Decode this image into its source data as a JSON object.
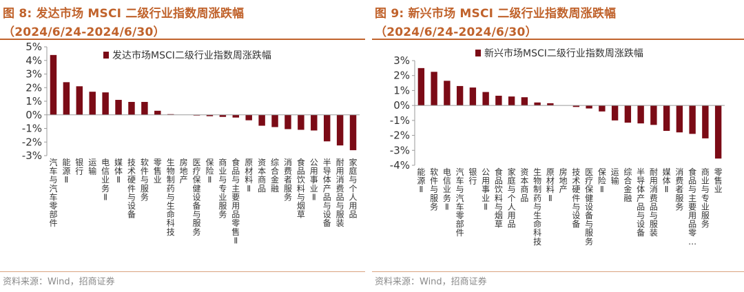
{
  "source_label": "资料来源：Wind，招商证券",
  "colors": {
    "bar": "#7B0B16",
    "title": "#C0622B",
    "axis": "#9a9a9a",
    "text": "#333333"
  },
  "chart_data": [
    {
      "type": "bar",
      "title": "图 8:  发达市场 MSCI 二级行业指数周涨跌幅",
      "subtitle": "（2024/6/24-2024/6/30）",
      "legend": "发达市场MSCI二级行业指数周涨跌幅",
      "legend_position": "top",
      "grid": false,
      "ylim": [
        -3,
        5
      ],
      "yticks": [
        5,
        4,
        3,
        2,
        1,
        0,
        -1,
        -2,
        -3
      ],
      "tick_format": "percent",
      "categories": [
        "汽车与汽车零部件",
        "能源Ⅱ",
        "银行",
        "运输",
        "电信业务Ⅱ",
        "媒体Ⅱ",
        "技术硬件与设备",
        "软件与服务",
        "零售业",
        "生物制药与生命科技",
        "房地产",
        "医疗保健设备与服务",
        "保险Ⅱ",
        "商业与专业服务",
        "食品与主要用品零售Ⅱ",
        "原材料Ⅱ",
        "资本商品",
        "综合金融",
        "消费者服务",
        "食品饮料与烟草",
        "公用事业Ⅱ",
        "半导体产品与设备",
        "耐用消费品与服装",
        "家庭与个人用品"
      ],
      "values": [
        4.4,
        2.4,
        2.1,
        1.7,
        1.65,
        1.1,
        0.95,
        0.95,
        0.3,
        0.05,
        0.0,
        -0.05,
        -0.1,
        -0.15,
        -0.2,
        -0.4,
        -0.8,
        -0.9,
        -1.05,
        -1.1,
        -1.15,
        -1.95,
        -2.25,
        -2.6
      ]
    },
    {
      "type": "bar",
      "title": "图 9:  新兴市场 MSCI 二级行业指数周涨跌幅",
      "subtitle": "（2024/6/24-2024/6/30）",
      "legend": "新兴市场MSCI二级行业指数周涨跌幅",
      "legend_position": "top",
      "grid": false,
      "ylim": [
        -4,
        3
      ],
      "yticks": [
        3,
        2,
        1,
        0,
        -1,
        -2,
        -3,
        -4
      ],
      "tick_format": "percent",
      "categories": [
        "能源Ⅱ",
        "软件与服务",
        "电信业务Ⅱ",
        "汽车与汽车零部件",
        "银行",
        "公用事业Ⅱ",
        "食品饮料与烟草",
        "家庭与个人用品",
        "资本商品",
        "生物制药与生命科技",
        "原材料Ⅱ",
        "房地产",
        "技术硬件与设备",
        "医疗保健设备与服务",
        "保险Ⅱ",
        "运输",
        "综合金融",
        "半导体产品与设备",
        "耐用消费品与服装",
        "媒体Ⅱ",
        "消费者服务",
        "食品与主要用品零…",
        "商业与专业服务",
        "零售业"
      ],
      "values": [
        2.5,
        2.25,
        1.65,
        1.3,
        1.2,
        0.9,
        0.65,
        0.6,
        0.55,
        0.2,
        0.15,
        0.0,
        -0.1,
        -0.2,
        -0.4,
        -1.0,
        -1.15,
        -1.2,
        -1.3,
        -1.7,
        -1.8,
        -1.9,
        -2.2,
        -3.55
      ]
    }
  ]
}
